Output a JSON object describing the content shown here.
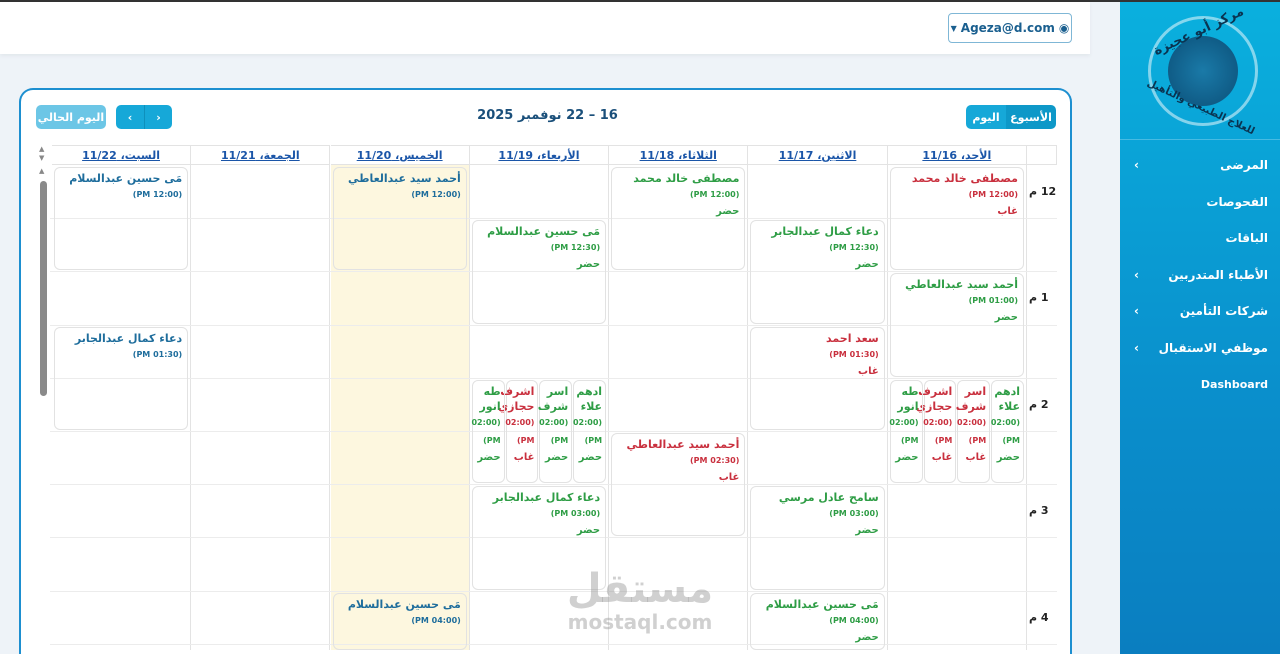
{
  "header": {
    "user_email": "Ageza@d.com"
  },
  "sidebar": {
    "logo_text_top": "مركز أبو عجيزة",
    "logo_text_bottom": "للعلاج الطبيعي والتأهيل",
    "items": [
      {
        "label": "المرضى",
        "has_submenu": true
      },
      {
        "label": "الفحوصات",
        "has_submenu": false
      },
      {
        "label": "الباقات",
        "has_submenu": false
      },
      {
        "label": "الأطباء المتدربين",
        "has_submenu": true
      },
      {
        "label": "شركات التأمين",
        "has_submenu": true
      },
      {
        "label": "موظفي الاستقبال",
        "has_submenu": true
      },
      {
        "label": "Dashboard",
        "has_submenu": false
      }
    ]
  },
  "calendar": {
    "title": "16 – 22 نوفمبر 2025",
    "today_label": "اليوم الحالي",
    "view_week": "الأسبوع",
    "view_day": "اليوم",
    "days": [
      "الأحد، 11/16",
      "الاثنين، 11/17",
      "الثلاثاء، 11/18",
      "الأربعاء، 11/19",
      "الخميس، 11/20",
      "الجمعة، 11/21",
      "السبت، 11/22"
    ],
    "highlighted_day": 4,
    "time_labels": [
      "12 م",
      "1 م",
      "2 م",
      "3 م",
      "4 م"
    ],
    "colors": {
      "present": "#2e9d45",
      "absent": "#c9303e",
      "pending": "#1e6d9c",
      "today_bg": "#fdf7df",
      "accent": "#16a8d8"
    },
    "events": [
      {
        "day": 0,
        "start": "12:00",
        "name": "مصطفى خالد محمد",
        "time": "(12:00 PM)",
        "status": "غاب",
        "state": "absent"
      },
      {
        "day": 0,
        "start": "1:00",
        "name": "أحمد سيد عبدالعاطي",
        "time": "(01:00 PM)",
        "status": "حضر",
        "state": "present"
      },
      {
        "day": 0,
        "start": "2:00",
        "lane": 0,
        "lanes": 4,
        "name": "ادهم علاء",
        "time": "(02:00 PM)",
        "status": "حضر",
        "state": "present"
      },
      {
        "day": 0,
        "start": "2:00",
        "lane": 1,
        "lanes": 4,
        "name": "اسر شرف",
        "time": "(02:00 PM)",
        "status": "غاب",
        "state": "absent"
      },
      {
        "day": 0,
        "start": "2:00",
        "lane": 2,
        "lanes": 4,
        "name": "اشرف حجازي",
        "time": "(02:00 PM)",
        "status": "غاب",
        "state": "absent"
      },
      {
        "day": 0,
        "start": "2:00",
        "lane": 3,
        "lanes": 4,
        "name": "طه انور",
        "time": "(02:00 PM)",
        "status": "حضر",
        "state": "present"
      },
      {
        "day": 1,
        "start": "12:30",
        "name": "دعاء كمال عبدالجابر",
        "time": "(12:30 PM)",
        "status": "حضر",
        "state": "present"
      },
      {
        "day": 1,
        "start": "1:30",
        "name": "سعد احمد",
        "time": "(01:30 PM)",
        "status": "غاب",
        "state": "absent"
      },
      {
        "day": 1,
        "start": "3:00",
        "name": "سامح عادل مرسي",
        "time": "(03:00 PM)",
        "status": "حضر",
        "state": "present"
      },
      {
        "day": 1,
        "start": "4:00",
        "name": "مَى حسين عبدالسلام",
        "time": "(04:00 PM)",
        "status": "حضر",
        "state": "present"
      },
      {
        "day": 2,
        "start": "12:00",
        "name": "مصطفى خالد محمد",
        "time": "(12:00 PM)",
        "status": "حضر",
        "state": "present"
      },
      {
        "day": 2,
        "start": "2:30",
        "name": "أحمد سيد عبدالعاطي",
        "time": "(02:30 PM)",
        "status": "غاب",
        "state": "absent"
      },
      {
        "day": 3,
        "start": "12:30",
        "name": "مَى حسين عبدالسلام",
        "time": "(12:30 PM)",
        "status": "حضر",
        "state": "present"
      },
      {
        "day": 3,
        "start": "2:00",
        "lane": 0,
        "lanes": 4,
        "name": "ادهم علاء",
        "time": "(02:00 PM)",
        "status": "حضر",
        "state": "present"
      },
      {
        "day": 3,
        "start": "2:00",
        "lane": 1,
        "lanes": 4,
        "name": "اسر شرف",
        "time": "(02:00 PM)",
        "status": "حضر",
        "state": "present"
      },
      {
        "day": 3,
        "start": "2:00",
        "lane": 2,
        "lanes": 4,
        "name": "اشرف حجازي",
        "time": "(02:00 PM)",
        "status": "غاب",
        "state": "absent"
      },
      {
        "day": 3,
        "start": "2:00",
        "lane": 3,
        "lanes": 4,
        "name": "طه انور",
        "time": "(02:00 PM)",
        "status": "حضر",
        "state": "present"
      },
      {
        "day": 3,
        "start": "3:00",
        "name": "دعاء كمال عبدالجابر",
        "time": "(03:00 PM)",
        "status": "حضر",
        "state": "present"
      },
      {
        "day": 4,
        "start": "12:00",
        "name": "أحمد سيد عبدالعاطي",
        "time": "(12:00 PM)",
        "status": "",
        "state": "pending"
      },
      {
        "day": 4,
        "start": "4:00",
        "name": "مَى حسين عبدالسلام",
        "time": "(04:00 PM)",
        "status": "",
        "state": "pending"
      },
      {
        "day": 6,
        "start": "12:00",
        "name": "مَى حسين عبدالسلام",
        "time": "(12:00 PM)",
        "status": "",
        "state": "pending"
      },
      {
        "day": 6,
        "start": "1:30",
        "name": "دعاء كمال عبدالجابر",
        "time": "(01:30 PM)",
        "status": "",
        "state": "pending"
      }
    ]
  },
  "watermark": {
    "arabic": "مستقل",
    "latin": "mostaql.com"
  }
}
